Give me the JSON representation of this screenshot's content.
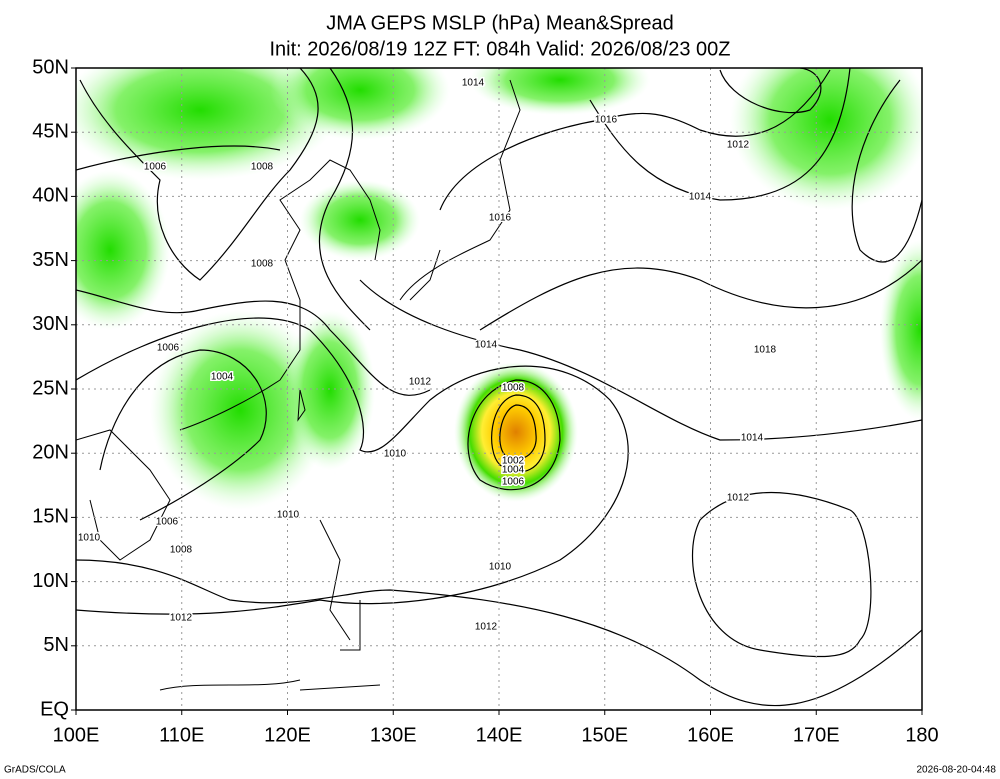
{
  "header": {
    "title": "JMA GEPS MSLP (hPa) Mean&Spread",
    "subtitle": "Init: 2026/08/19 12Z  FT: 084h  Valid: 2026/08/23 00Z"
  },
  "map": {
    "lat_labels": [
      "50N",
      "45N",
      "40N",
      "35N",
      "30N",
      "25N",
      "20N",
      "15N",
      "10N",
      "5N",
      "EQ"
    ],
    "lon_labels": [
      "100E",
      "110E",
      "120E",
      "130E",
      "140E",
      "150E",
      "160E",
      "170E",
      "180"
    ],
    "contour_labels": [
      1014,
      1016,
      1012,
      1006,
      1008,
      1014,
      1016,
      1008,
      1006,
      1014,
      1018,
      1004,
      1012,
      1008,
      1010,
      1014,
      1002,
      1004,
      1006,
      1012,
      1006,
      1010,
      1010,
      1008,
      1010,
      1012,
      1012
    ]
  },
  "footer": {
    "left": "GrADS/COLA",
    "right": "2026-08-20-04:48"
  }
}
